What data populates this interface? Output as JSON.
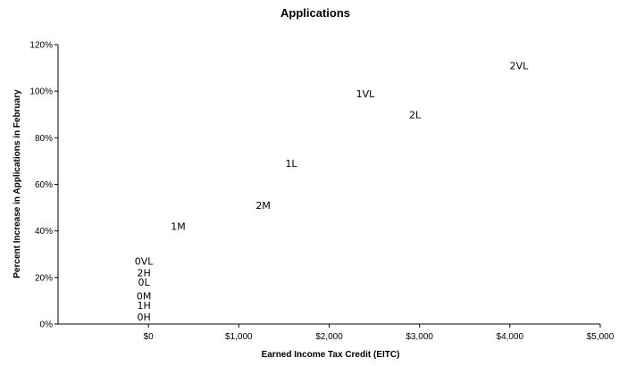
{
  "chart_data": {
    "type": "scatter",
    "title": "Applications",
    "xlabel": "Earned Income Tax Credit (EITC)",
    "ylabel": "Percent Increase in Applications in February",
    "xlim": [
      -1000,
      5000
    ],
    "ylim": [
      0,
      120
    ],
    "x_ticks": [
      0,
      1000,
      2000,
      3000,
      4000,
      5000
    ],
    "x_tick_labels": [
      "$0",
      "$1,000",
      "$2,000",
      "$3,000",
      "$4,000",
      "$5,000"
    ],
    "y_ticks": [
      0,
      20,
      40,
      60,
      80,
      100,
      120
    ],
    "y_tick_labels": [
      "0%",
      "20%",
      "40%",
      "60%",
      "80%",
      "100%",
      "120%"
    ],
    "grid": false,
    "legend": "none",
    "marker": "text-label",
    "points": [
      {
        "label": "2VL",
        "x": 4100,
        "y": 111
      },
      {
        "label": "1VL",
        "x": 2400,
        "y": 99
      },
      {
        "label": "2L",
        "x": 2950,
        "y": 90
      },
      {
        "label": "1L",
        "x": 1580,
        "y": 69
      },
      {
        "label": "2M",
        "x": 1270,
        "y": 51
      },
      {
        "label": "1M",
        "x": 330,
        "y": 42
      },
      {
        "label": "0VL",
        "x": -50,
        "y": 27
      },
      {
        "label": "2H",
        "x": -50,
        "y": 22
      },
      {
        "label": "0L",
        "x": -50,
        "y": 18
      },
      {
        "label": "0M",
        "x": -50,
        "y": 12
      },
      {
        "label": "1H",
        "x": -50,
        "y": 8
      },
      {
        "label": "0H",
        "x": -50,
        "y": 3
      }
    ]
  }
}
